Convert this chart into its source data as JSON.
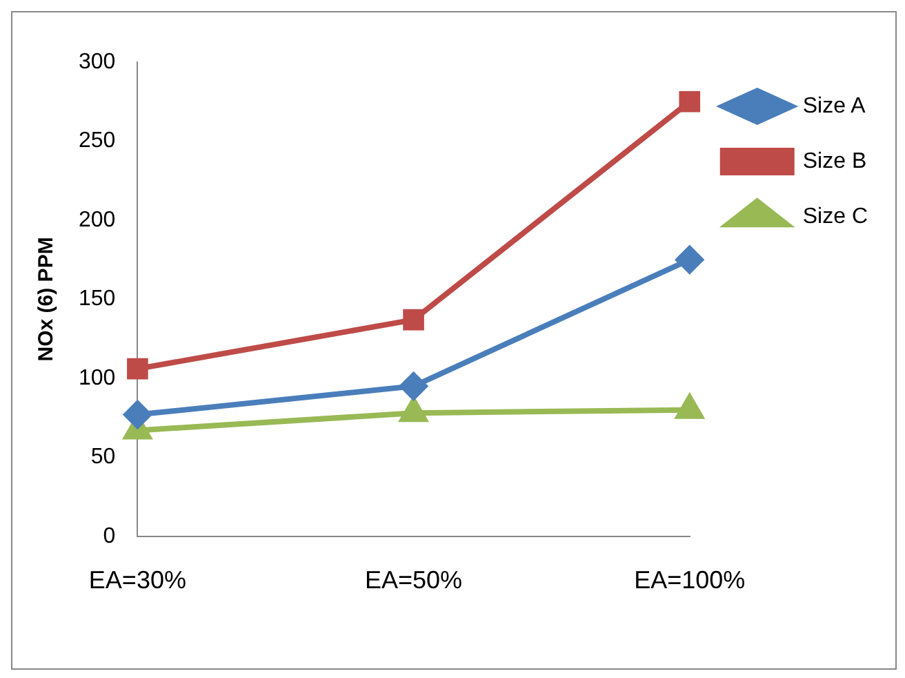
{
  "chart_data": {
    "type": "line",
    "ylabel": "NOx (6) PPM",
    "categories": [
      "EA=30%",
      "EA=50%",
      "EA=100%"
    ],
    "series": [
      {
        "name": "Size A",
        "color": "#4a7ebb",
        "marker": "diamond",
        "values": [
          77,
          95,
          175
        ]
      },
      {
        "name": "Size B",
        "color": "#be4b48",
        "marker": "square",
        "values": [
          106,
          137,
          275
        ]
      },
      {
        "name": "Size C",
        "color": "#98b954",
        "marker": "triangle",
        "values": [
          67,
          78,
          80
        ]
      }
    ],
    "ylim": [
      0,
      300
    ],
    "yticks": [
      0,
      50,
      100,
      150,
      200,
      250,
      300
    ],
    "grid": false,
    "legend": "right"
  }
}
